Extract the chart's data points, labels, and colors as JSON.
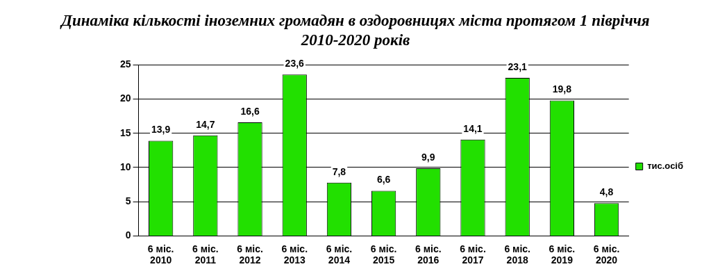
{
  "chart_data": {
    "type": "bar",
    "title": "Динаміка кількості іноземних громадян в оздоровницях міста протягом 1 півріччя 2010-2020 років",
    "categories": [
      "6 міс. 2010",
      "6 міс. 2011",
      "6 міс. 2012",
      "6 міс. 2013",
      "6 міс. 2014",
      "6 міс. 2015",
      "6 міс. 2016",
      "6 міс. 2017",
      "6 міс. 2018",
      "6 міс. 2019",
      "6 міс. 2020"
    ],
    "series": [
      {
        "name": "тис.осіб",
        "color": "#22e000",
        "values": [
          13.9,
          14.7,
          16.6,
          23.6,
          7.8,
          6.6,
          9.9,
          14.1,
          23.1,
          19.8,
          4.8
        ]
      }
    ],
    "value_labels": [
      "13,9",
      "14,7",
      "16,6",
      "23,6",
      "7,8",
      "6,6",
      "9,9",
      "14,1",
      "23,1",
      "19,8",
      "4,8"
    ],
    "ylim": [
      0,
      25
    ],
    "yticks": [
      0,
      5,
      10,
      15,
      20,
      25
    ],
    "grid": "y",
    "legend": "right"
  }
}
